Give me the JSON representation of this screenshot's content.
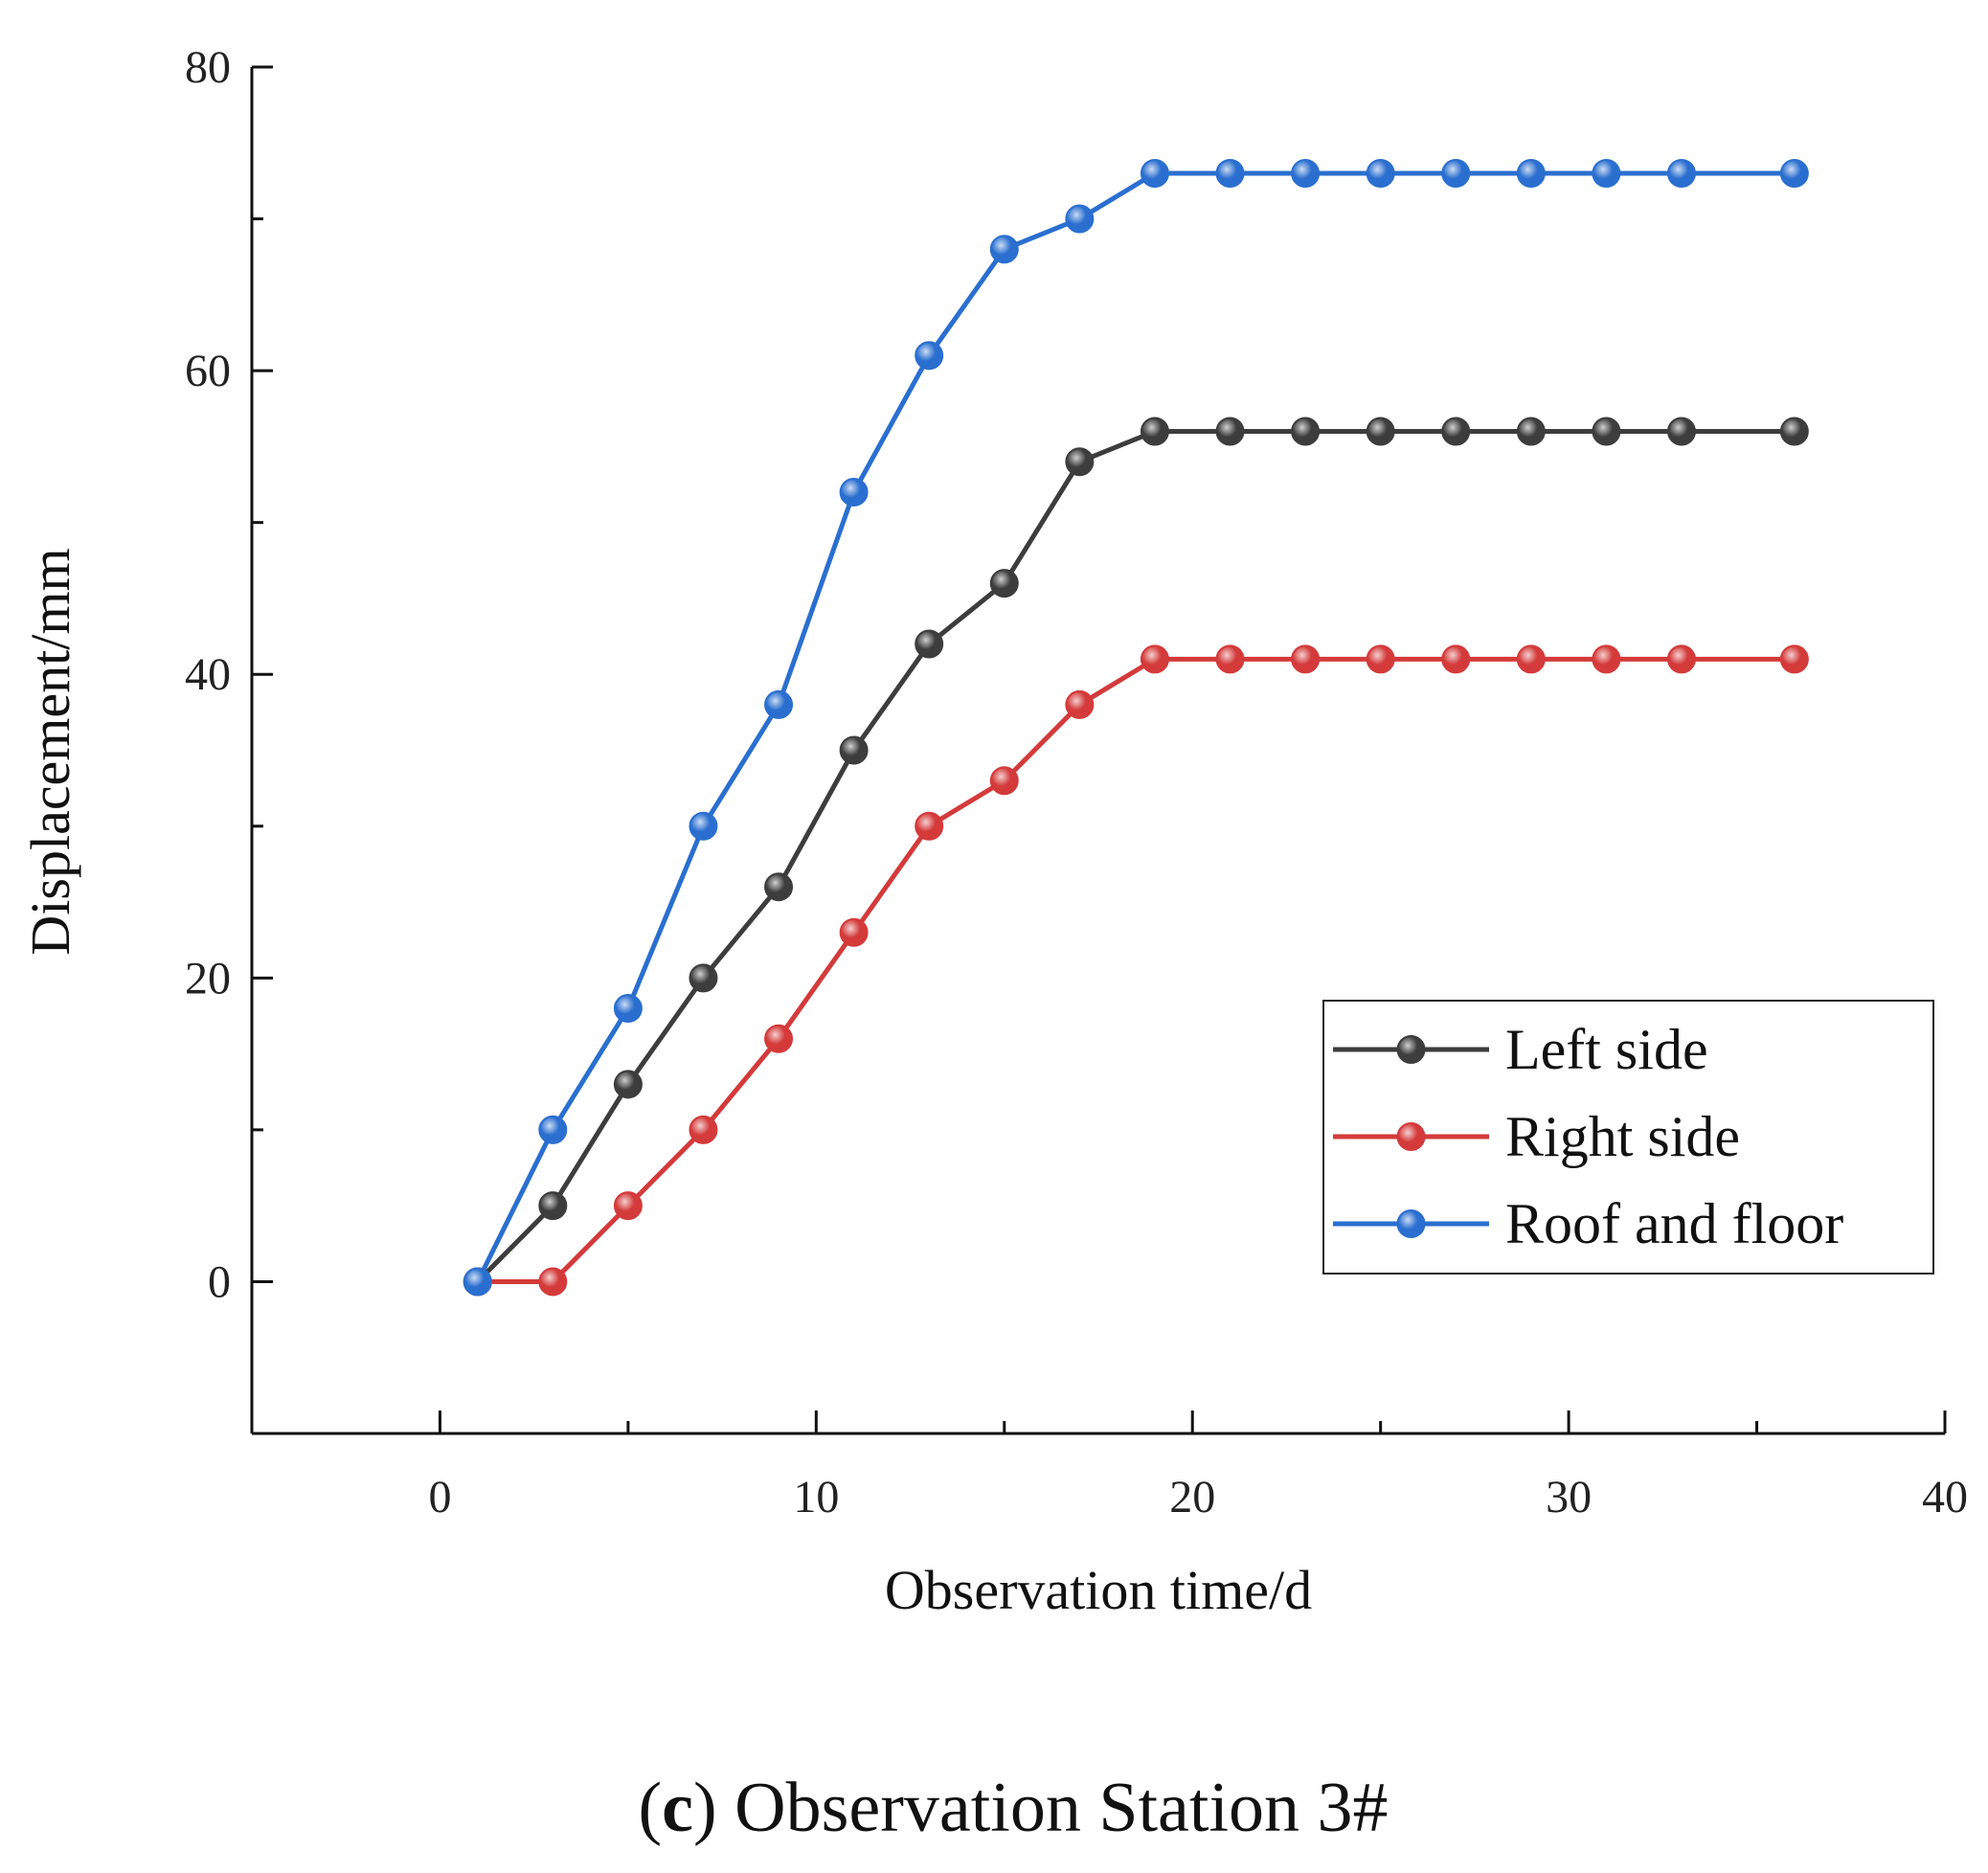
{
  "chart_data": {
    "type": "line",
    "title": "",
    "xlabel": "Observation time/d",
    "ylabel": "Displacement/mm",
    "xlim": [
      -5,
      40
    ],
    "ylim": [
      -10,
      80
    ],
    "x_ticks": [
      0,
      10,
      20,
      30,
      40
    ],
    "y_ticks": [
      0,
      20,
      40,
      60,
      80
    ],
    "grid": false,
    "legend_position": "bottom-right",
    "x": [
      1,
      3,
      5,
      7,
      9,
      11,
      13,
      15,
      17,
      19,
      21,
      23,
      25,
      27,
      29,
      31,
      33,
      36
    ],
    "series": [
      {
        "name": "Left side",
        "color": "#3d3d3d",
        "values": [
          0,
          5,
          13,
          20,
          26,
          35,
          42,
          46,
          54,
          56,
          56,
          56,
          56,
          56,
          56,
          56,
          56,
          56
        ]
      },
      {
        "name": "Right side",
        "color": "#d43a3a",
        "values": [
          0,
          0,
          5,
          10,
          16,
          23,
          30,
          33,
          38,
          41,
          41,
          41,
          41,
          41,
          41,
          41,
          41,
          41
        ]
      },
      {
        "name": "Roof and floor",
        "color": "#2a6fd0",
        "values": [
          0,
          10,
          18,
          30,
          38,
          52,
          61,
          68,
          70,
          73,
          73,
          73,
          73,
          73,
          73,
          73,
          73,
          73
        ]
      }
    ]
  },
  "caption": {
    "open": "(",
    "letter": "c",
    "rest": ") Observation Station 3#"
  }
}
